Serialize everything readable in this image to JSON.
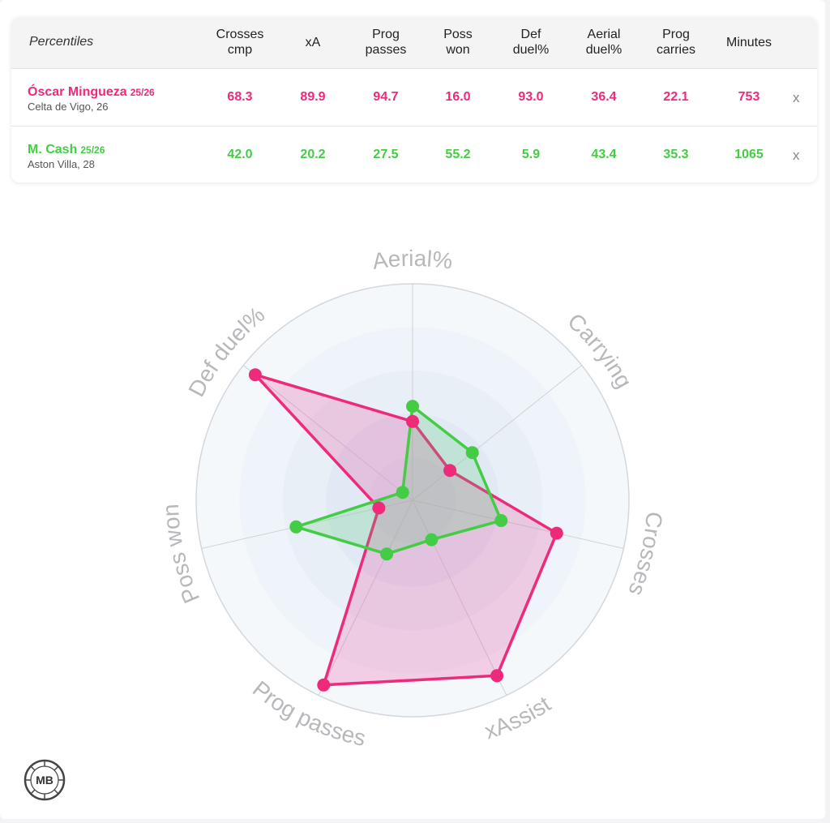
{
  "table": {
    "title": "Percentiles",
    "columns": [
      [
        "Crosses",
        "cmp"
      ],
      [
        "xA",
        ""
      ],
      [
        "Prog",
        "passes"
      ],
      [
        "Poss",
        "won"
      ],
      [
        "Def",
        "duel%"
      ],
      [
        "Aerial",
        "duel%"
      ],
      [
        "Prog",
        "carries"
      ],
      [
        "Minutes",
        ""
      ]
    ],
    "remove_label": "x",
    "players": [
      {
        "name": "Óscar Mingueza",
        "season": "25/26",
        "team": "Celta de Vigo, 26",
        "color": "#ee2a7b",
        "values": [
          "68.3",
          "89.9",
          "94.7",
          "16.0",
          "93.0",
          "36.4",
          "22.1",
          "753"
        ]
      },
      {
        "name": "M. Cash",
        "season": "25/26",
        "team": "Aston Villa, 28",
        "color": "#44cc44",
        "values": [
          "42.0",
          "20.2",
          "27.5",
          "55.2",
          "5.9",
          "43.4",
          "35.3",
          "1065"
        ]
      }
    ]
  },
  "chart_data": {
    "type": "radar",
    "axes": [
      "Aerial%",
      "Carrying",
      "Crosses",
      "xAssist",
      "Prog passes",
      "Poss won",
      "Def duel%"
    ],
    "range": [
      0,
      100
    ],
    "series": [
      {
        "name": "Óscar Mingueza",
        "color": "#ee2a7b",
        "fill": "rgba(230,60,150,0.22)",
        "values": [
          36.4,
          22.1,
          68.3,
          89.9,
          94.7,
          16.0,
          93.0
        ]
      },
      {
        "name": "M. Cash",
        "color": "#44cc44",
        "fill": "rgba(80,200,110,0.22)",
        "values": [
          43.4,
          35.3,
          42.0,
          20.2,
          27.5,
          55.2,
          5.9
        ]
      }
    ]
  },
  "logo_text": "MB"
}
